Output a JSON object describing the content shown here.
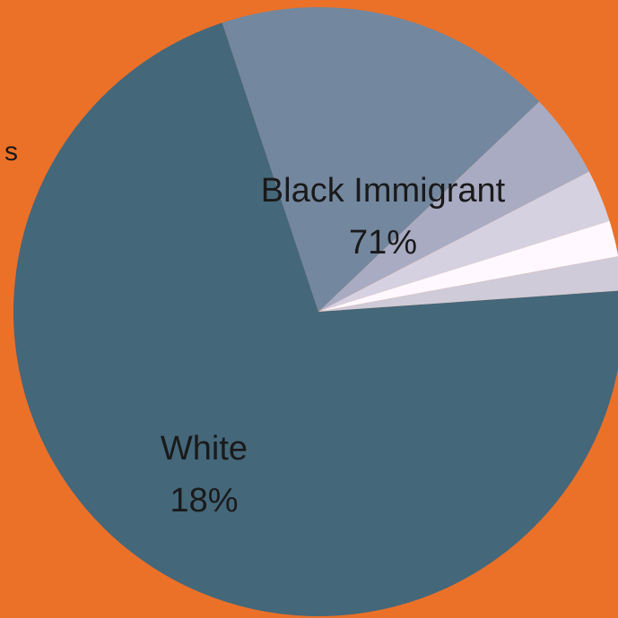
{
  "chart_data": {
    "type": "pie",
    "slices": [
      {
        "label": "Black Immigrant",
        "value": 71,
        "color": "#44677A"
      },
      {
        "label": "White",
        "value": 18,
        "color": "#73879F"
      },
      {
        "label": "",
        "value": 4.5,
        "color": "#A9ABC2"
      },
      {
        "label": "",
        "value": 2.8,
        "color": "#D5D1E1"
      },
      {
        "label": "",
        "value": 1.9,
        "color": "#FFF9FF"
      },
      {
        "label": "",
        "value": 1.8,
        "color": "#CFCBD8"
      }
    ],
    "labels": {
      "black_immigrant": {
        "name": "Black Immigrant",
        "pct": "71%"
      },
      "white": {
        "name": "White",
        "pct": "18%"
      },
      "clipped_label_fragment": "s"
    },
    "background_color": "#EB7128"
  }
}
